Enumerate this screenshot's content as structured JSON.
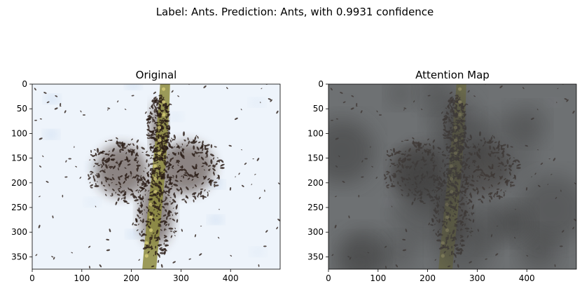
{
  "figure": {
    "suptitle": "Label: Ants. Prediction: Ants, with 0.9931 confidence"
  },
  "chart_data": [
    {
      "type": "image",
      "title": "Original",
      "xlim": [
        0,
        500
      ],
      "ylim": [
        375,
        0
      ],
      "xticks": [
        0,
        100,
        200,
        300,
        400
      ],
      "yticks": [
        0,
        50,
        100,
        150,
        200,
        250,
        300,
        350
      ],
      "xlabel": "",
      "ylabel": "",
      "image_content": "photo of an ant swarm spreading in a butterfly shape around a mossy branch on light snowy ground",
      "colors": {
        "ground": "#eef4fb",
        "ants": "#3d2b22",
        "branch": "#8c8a3c",
        "shadow": "#a9c4e6"
      }
    },
    {
      "type": "image",
      "title": "Attention Map",
      "xlim": [
        0,
        500
      ],
      "ylim": [
        375,
        0
      ],
      "xticks": [
        0,
        100,
        200,
        300,
        400
      ],
      "yticks": [
        0,
        50,
        100,
        150,
        200,
        250,
        300,
        350
      ],
      "xlabel": "",
      "ylabel": "",
      "image_content": "same photo darkened by a grey attention overlay",
      "colors": {
        "overlay": "#5a5a5a",
        "ants": "#2e2520",
        "branch": "#7d7a36"
      }
    }
  ]
}
